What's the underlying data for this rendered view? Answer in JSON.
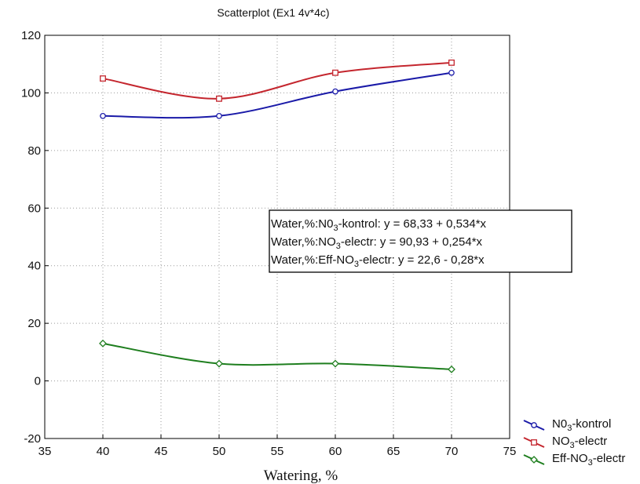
{
  "chart_data": {
    "type": "line",
    "title": "Scatterplot (Ex1 4v*4c)",
    "xlabel": "Watering, %",
    "ylabel": "",
    "xlim": [
      35,
      75
    ],
    "ylim": [
      -20,
      120
    ],
    "xticks": [
      35,
      40,
      45,
      50,
      55,
      60,
      65,
      70,
      75
    ],
    "yticks": [
      -20,
      0,
      20,
      40,
      60,
      80,
      100,
      120
    ],
    "grid": true,
    "legend_position": "bottom-right",
    "x": [
      40,
      50,
      60,
      70
    ],
    "series": [
      {
        "name_parts": [
          "N0",
          "3",
          "-kontrol"
        ],
        "color": "#1a1aa8",
        "marker": "circle",
        "values": [
          92,
          92,
          100.5,
          107
        ]
      },
      {
        "name_parts": [
          "NO",
          "3",
          "-electr"
        ],
        "color": "#c4262e",
        "marker": "square",
        "values": [
          105,
          98,
          107,
          110.5
        ]
      },
      {
        "name_parts": [
          "Eff-NO",
          "3",
          "-electr"
        ],
        "color": "#1e7e1e",
        "marker": "diamond",
        "values": [
          13,
          6,
          6,
          4
        ]
      }
    ],
    "annotation_lines": [
      {
        "parts": [
          "Water,%:N0",
          "3",
          "-kontrol:  y = 68,33 + 0,534*x"
        ]
      },
      {
        "parts": [
          "Water,%:NO",
          "3",
          "-electr:  y = 90,93 + 0,254*x"
        ]
      },
      {
        "parts": [
          "Water,%:Eff-NO",
          "3",
          "-electr:  y =  22,6 -  0,28*x"
        ]
      }
    ]
  }
}
